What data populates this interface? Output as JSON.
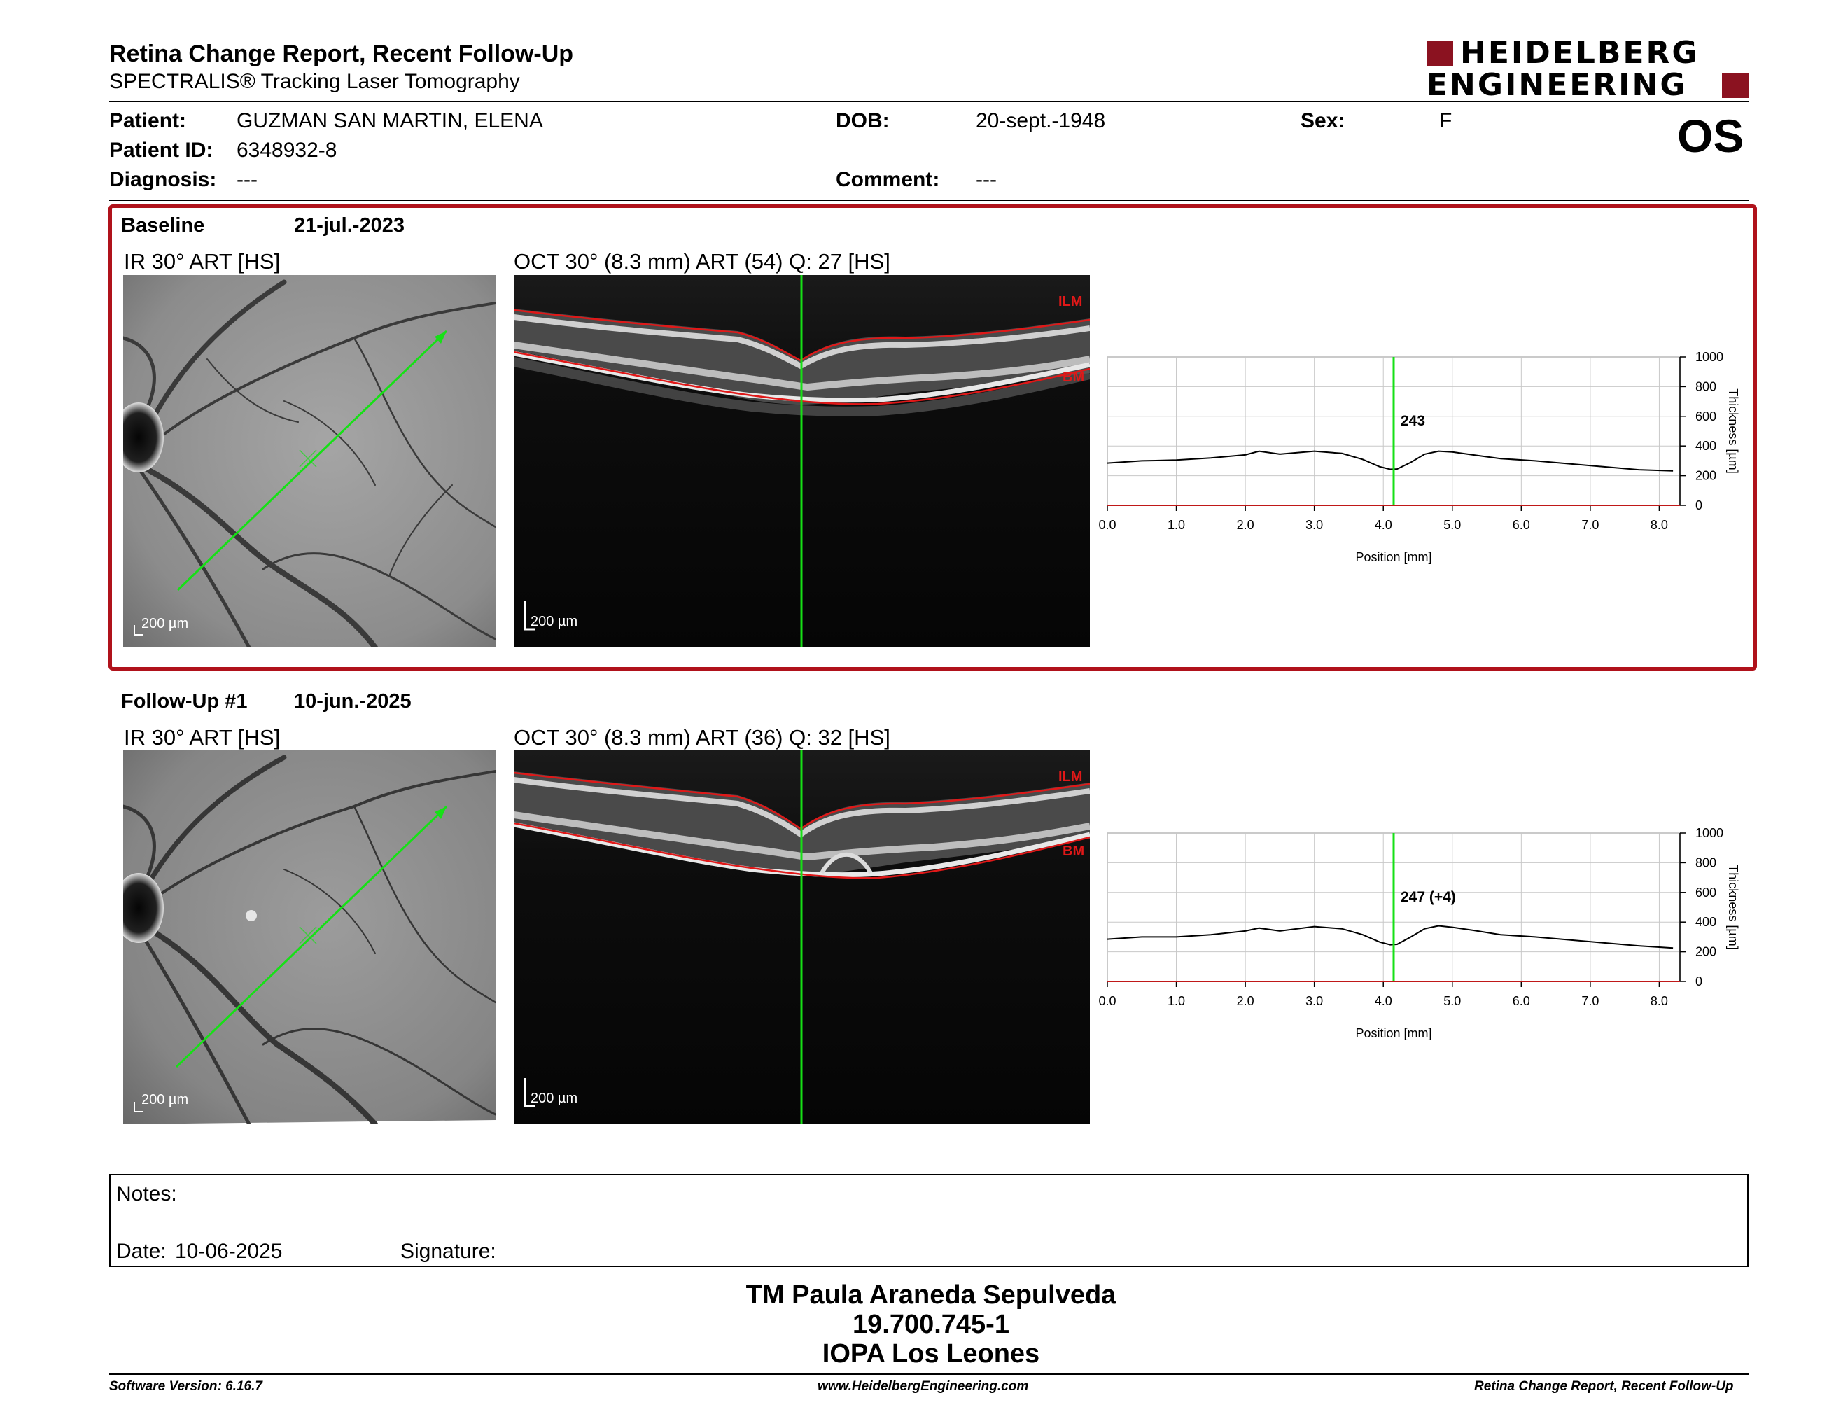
{
  "header": {
    "title": "Retina Change Report, Recent Follow-Up",
    "subtitle": "SPECTRALIS® Tracking Laser Tomography",
    "logo_line1": "HEIDELBERG",
    "logo_line2": "ENGINEERING",
    "eye": "OS"
  },
  "patient": {
    "name_label": "Patient:",
    "name": "GUZMAN SAN MARTIN, ELENA",
    "id_label": "Patient ID:",
    "id": "6348932-8",
    "diagnosis_label": "Diagnosis:",
    "diagnosis": "---",
    "dob_label": "DOB:",
    "dob": "20-sept.-1948",
    "comment_label": "Comment:",
    "comment": "---",
    "sex_label": "Sex:",
    "sex": "F"
  },
  "baseline": {
    "label": "Baseline",
    "date": "21-jul.-2023",
    "ir_label": "IR 30° ART [HS]",
    "oct_label": "OCT 30° (8.3 mm) ART (54) Q: 27 [HS]",
    "ir_scale": "200 µm",
    "oct_scale": "200 µm",
    "ilm": "ILM",
    "bm": "BM"
  },
  "followup": {
    "label": "Follow-Up #1",
    "date": "10-jun.-2025",
    "ir_label": "IR 30° ART [HS]",
    "oct_label": "OCT 30° (8.3 mm) ART (36) Q: 32 [HS]",
    "ir_scale": "200 µm",
    "oct_scale": "200 µm",
    "ilm": "ILM",
    "bm": "BM"
  },
  "chart_data": [
    {
      "type": "line",
      "xlabel": "Position [mm]",
      "ylabel": "Thickness [µm]",
      "xlim": [
        0,
        8.3
      ],
      "ylim": [
        0,
        1000
      ],
      "x_ticks": [
        "0.0",
        "1.0",
        "2.0",
        "3.0",
        "4.0",
        "5.0",
        "6.0",
        "7.0",
        "8.0"
      ],
      "y_ticks": [
        "1000",
        "800",
        "600",
        "400",
        "200",
        "0"
      ],
      "cursor_x": 4.15,
      "annotation": "243",
      "series": [
        {
          "x": [
            0,
            0.5,
            1.0,
            1.5,
            2.0,
            2.2,
            2.5,
            3.0,
            3.4,
            3.7,
            3.95,
            4.1,
            4.2,
            4.4,
            4.6,
            4.8,
            5.0,
            5.3,
            5.7,
            6.2,
            6.7,
            7.2,
            7.7,
            8.2
          ],
          "y": [
            285,
            300,
            305,
            320,
            340,
            365,
            345,
            365,
            350,
            310,
            260,
            243,
            245,
            290,
            345,
            365,
            360,
            340,
            315,
            300,
            280,
            260,
            240,
            232
          ]
        }
      ]
    },
    {
      "type": "line",
      "xlabel": "Position [mm]",
      "ylabel": "Thickness [µm]",
      "xlim": [
        0,
        8.3
      ],
      "ylim": [
        0,
        1000
      ],
      "x_ticks": [
        "0.0",
        "1.0",
        "2.0",
        "3.0",
        "4.0",
        "5.0",
        "6.0",
        "7.0",
        "8.0"
      ],
      "y_ticks": [
        "1000",
        "800",
        "600",
        "400",
        "200",
        "0"
      ],
      "cursor_x": 4.15,
      "annotation": "247 (+4)",
      "series": [
        {
          "x": [
            0,
            0.5,
            1.0,
            1.5,
            2.0,
            2.2,
            2.5,
            3.0,
            3.4,
            3.7,
            3.95,
            4.1,
            4.2,
            4.4,
            4.6,
            4.8,
            5.0,
            5.3,
            5.7,
            6.2,
            6.7,
            7.2,
            7.7,
            8.2
          ],
          "y": [
            285,
            300,
            300,
            315,
            340,
            360,
            340,
            370,
            355,
            315,
            265,
            247,
            250,
            300,
            355,
            375,
            365,
            345,
            315,
            300,
            280,
            260,
            240,
            225
          ]
        }
      ]
    }
  ],
  "notes": {
    "notes_label": "Notes:",
    "date_label": "Date:",
    "date": "10-06-2025",
    "signature_label": "Signature:"
  },
  "footer": {
    "line1": "TM Paula Araneda Sepulveda",
    "line2": "19.700.745-1",
    "line3": "IOPA Los Leones",
    "software": "Software Version: 6.16.7",
    "website": "www.HeidelbergEngineering.com",
    "report": "Retina Change Report, Recent Follow-Up"
  }
}
